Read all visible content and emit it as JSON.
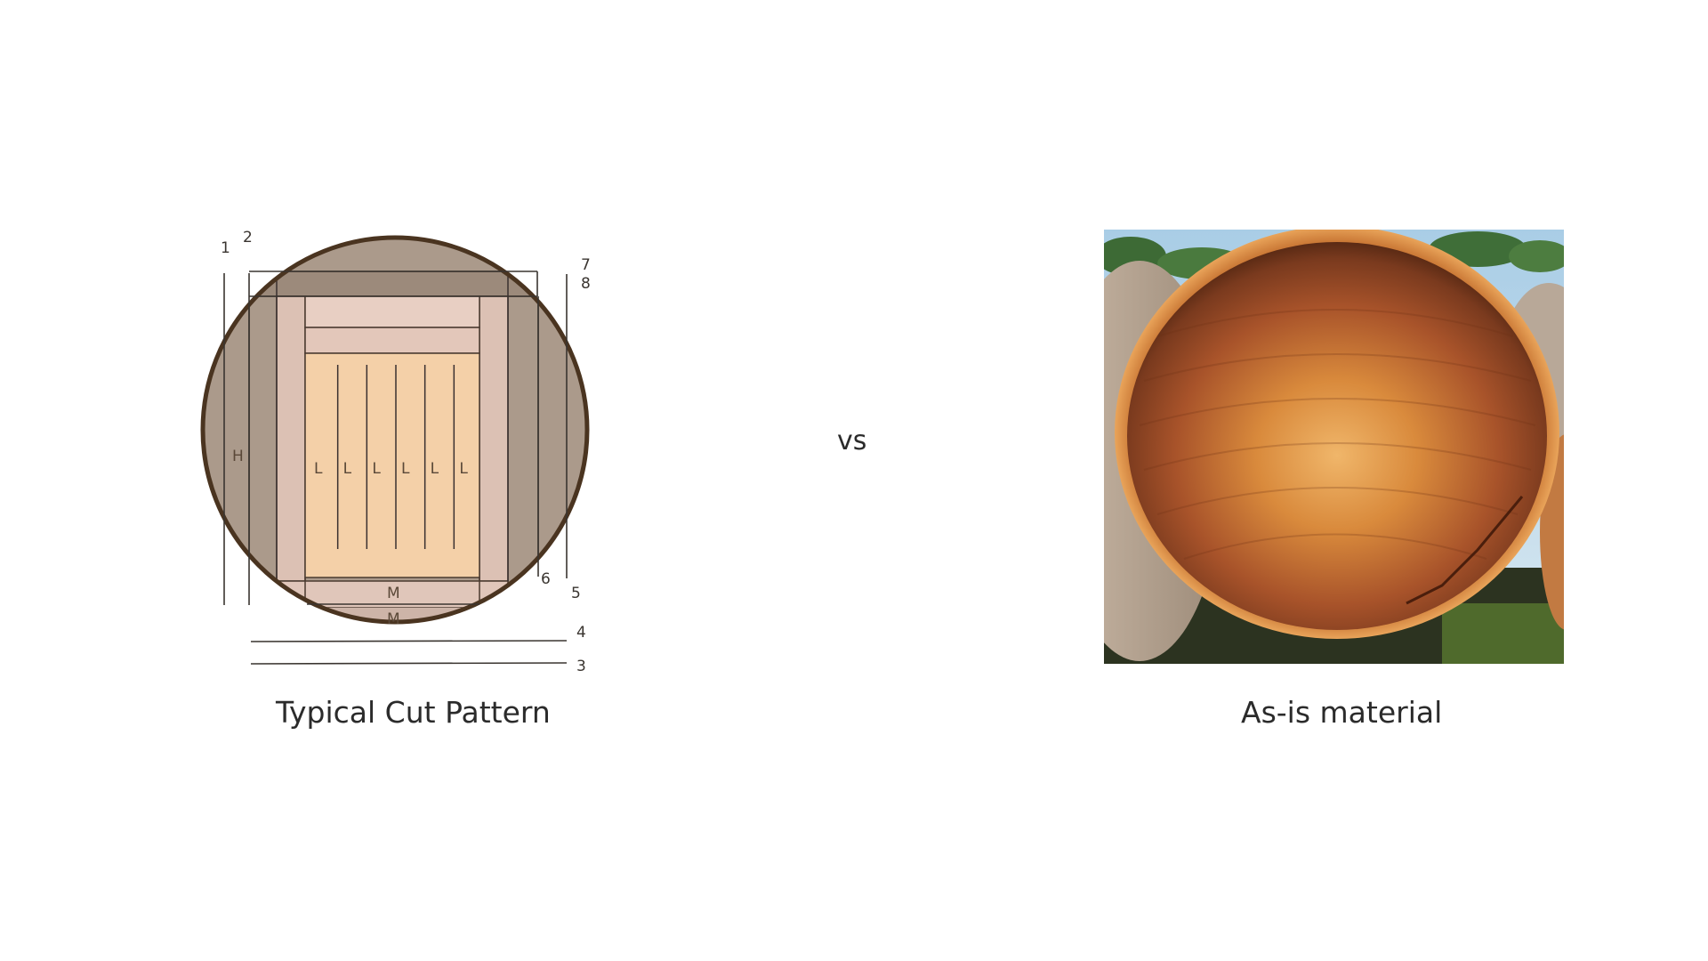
{
  "left_panel": {
    "caption": "Typical Cut Pattern",
    "line_numbers": [
      "1",
      "2",
      "3",
      "4",
      "5",
      "6",
      "7",
      "8"
    ],
    "piece_labels": {
      "side": "H",
      "center": [
        "L",
        "L",
        "L",
        "L",
        "L",
        "L"
      ],
      "bottom": "M",
      "bottom_outer": "M"
    },
    "colors": {
      "log_outline": "#4a3420",
      "outer_wood": "#ab9a8b",
      "mid_boards": "#dcc1b4",
      "center_block": "#f4d0a8"
    }
  },
  "separator": {
    "text": "vs"
  },
  "right_panel": {
    "caption": "As-is material",
    "image_subject": "cross-section of a cut log"
  }
}
